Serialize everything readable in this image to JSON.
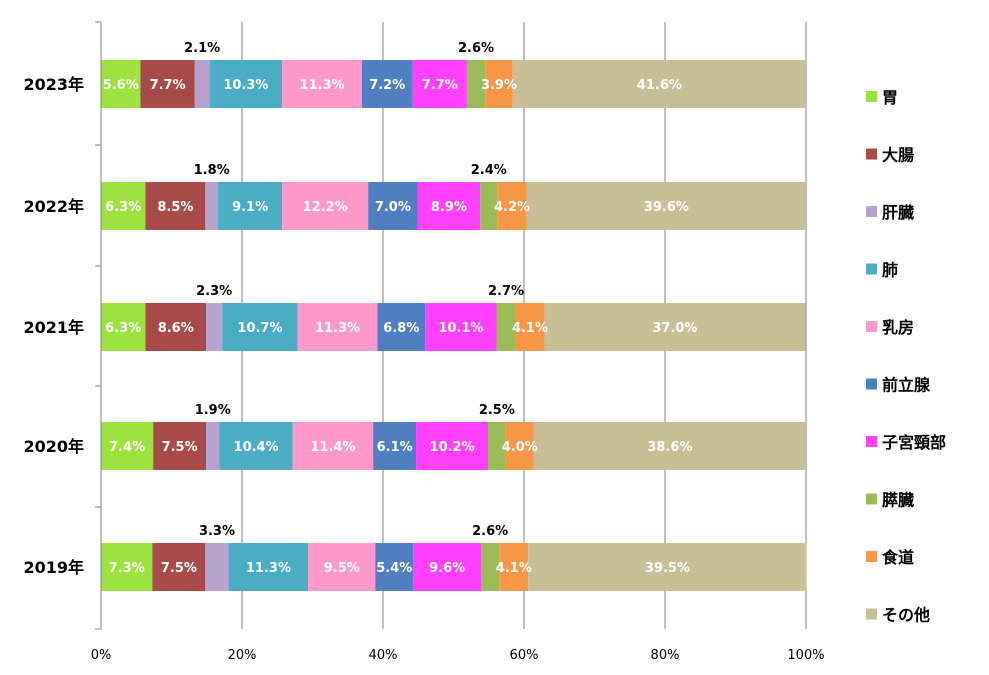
{
  "chart_data": {
    "type": "bar",
    "orientation": "horizontal",
    "stacked": "percent",
    "categories": [
      "2023年",
      "2022年",
      "2021年",
      "2020年",
      "2019年"
    ],
    "xlim": [
      0,
      100
    ],
    "xticks": [
      "0%",
      "20%",
      "40%",
      "60%",
      "80%",
      "100%"
    ],
    "grid": true,
    "legend": "right",
    "series": [
      {
        "name": "胃",
        "color": "#9de23f",
        "values": [
          5.6,
          6.3,
          6.3,
          7.4,
          7.3
        ],
        "labels": [
          "5.6%",
          "6.3%",
          "6.3%",
          "7.4%",
          "7.3%"
        ]
      },
      {
        "name": "大腸",
        "color": "#a84a4a",
        "values": [
          7.7,
          8.5,
          8.6,
          7.5,
          7.5
        ],
        "labels": [
          "7.7%",
          "8.5%",
          "8.6%",
          "7.5%",
          "7.5%"
        ]
      },
      {
        "name": "肝臓",
        "color": "#b6a4cc",
        "values": [
          2.1,
          1.8,
          2.3,
          1.9,
          3.3
        ],
        "labels": [
          "2.1%",
          "1.8%",
          "2.3%",
          "1.9%",
          "3.3%"
        ]
      },
      {
        "name": "肺",
        "color": "#4bacc6",
        "values": [
          10.3,
          9.1,
          10.7,
          10.4,
          11.3
        ],
        "labels": [
          "10.3%",
          "9.1%",
          "10.7%",
          "10.4%",
          "11.3%"
        ]
      },
      {
        "name": "乳房",
        "color": "#ff99cc",
        "values": [
          11.3,
          12.2,
          11.3,
          11.4,
          9.5
        ],
        "labels": [
          "11.3%",
          "12.2%",
          "11.3%",
          "11.4%",
          "9.5%"
        ]
      },
      {
        "name": "前立腺",
        "color": "#4f7fc0",
        "values": [
          7.2,
          7.0,
          6.8,
          6.1,
          5.4
        ],
        "labels": [
          "7.2%",
          "7.0%",
          "6.8%",
          "6.1%",
          "5.4%"
        ]
      },
      {
        "name": "子宮頸部",
        "color": "#ff40ff",
        "values": [
          7.7,
          8.9,
          10.1,
          10.2,
          9.6
        ],
        "labels": [
          "7.7%",
          "8.9%",
          "10.1%",
          "10.2%",
          "9.6%"
        ]
      },
      {
        "name": "膵臓",
        "color": "#9bbb59",
        "values": [
          2.6,
          2.4,
          2.7,
          2.5,
          2.6
        ],
        "labels": [
          "2.6%",
          "2.4%",
          "2.7%",
          "2.5%",
          "2.6%"
        ]
      },
      {
        "name": "食道",
        "color": "#f79646",
        "values": [
          3.9,
          4.2,
          4.1,
          4.0,
          4.1
        ],
        "labels": [
          "3.9%",
          "4.2%",
          "4.1%",
          "4.0%",
          "4.1%"
        ]
      },
      {
        "name": "その他",
        "color": "#c8bf96",
        "values": [
          41.6,
          39.6,
          37.0,
          38.6,
          39.5
        ],
        "labels": [
          "41.6%",
          "39.6%",
          "37.0%",
          "38.6%",
          "39.5%"
        ]
      }
    ],
    "outside_label_series": [
      "肝臓",
      "膵臓"
    ]
  }
}
